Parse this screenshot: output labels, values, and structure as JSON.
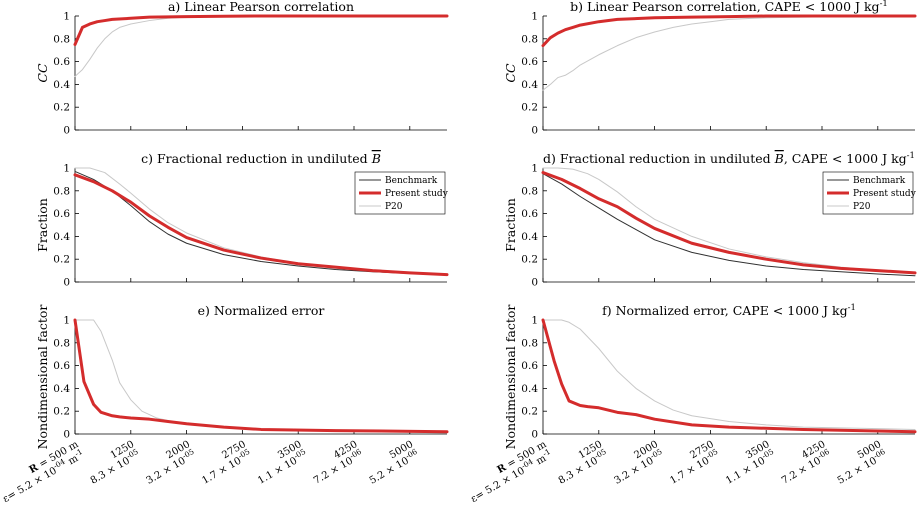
{
  "chart_data": [
    {
      "id": "a",
      "type": "line",
      "title": "a) Linear Pearson correlation",
      "ylabel": "CC",
      "ylabel_italic": true,
      "ylim": [
        0,
        1
      ],
      "yticks": [
        "0",
        "0.2",
        "0.4",
        "0.6",
        "0.8",
        "1"
      ],
      "xlim": [
        500,
        5500
      ],
      "legend": null,
      "series": [
        {
          "name": "P20",
          "color": "#c8c8c8",
          "width": 1,
          "x": [
            500,
            600,
            700,
            800,
            900,
            1000,
            1100,
            1250,
            1500,
            1750,
            2000,
            2500,
            3000,
            4000,
            5500
          ],
          "y": [
            0.47,
            0.53,
            0.62,
            0.72,
            0.8,
            0.86,
            0.9,
            0.93,
            0.96,
            0.98,
            0.99,
            0.995,
            0.998,
            1.0,
            1.0
          ]
        },
        {
          "name": "Present study",
          "color": "#d42c2c",
          "width": 3,
          "x": [
            500,
            600,
            700,
            800,
            900,
            1000,
            1250,
            1500,
            2000,
            2500,
            3000,
            4000,
            5500
          ],
          "y": [
            0.75,
            0.9,
            0.93,
            0.95,
            0.96,
            0.97,
            0.98,
            0.99,
            0.995,
            0.998,
            1.0,
            1.0,
            1.0
          ]
        }
      ]
    },
    {
      "id": "b",
      "type": "line",
      "title": "b) Linear Pearson correlation, CAPE < 1000 J kg",
      "title_sup": "-1",
      "ylabel": "CC",
      "ylabel_italic": true,
      "ylim": [
        0,
        1
      ],
      "yticks": [
        "0",
        "0.2",
        "0.4",
        "0.6",
        "0.8",
        "1"
      ],
      "xlim": [
        500,
        5500
      ],
      "legend": null,
      "series": [
        {
          "name": "P20",
          "color": "#c8c8c8",
          "width": 1,
          "x": [
            500,
            600,
            700,
            800,
            900,
            1000,
            1250,
            1500,
            1750,
            2000,
            2250,
            2500,
            2750,
            3000,
            3500,
            4000,
            4500,
            5500
          ],
          "y": [
            0.35,
            0.4,
            0.46,
            0.48,
            0.52,
            0.57,
            0.66,
            0.74,
            0.81,
            0.86,
            0.9,
            0.93,
            0.95,
            0.97,
            0.985,
            0.99,
            0.995,
            1.0
          ]
        },
        {
          "name": "Present study",
          "color": "#d42c2c",
          "width": 3,
          "x": [
            500,
            600,
            700,
            800,
            900,
            1000,
            1250,
            1500,
            2000,
            2500,
            3000,
            3500,
            4000,
            5500
          ],
          "y": [
            0.74,
            0.81,
            0.85,
            0.88,
            0.9,
            0.92,
            0.95,
            0.97,
            0.985,
            0.99,
            0.995,
            1.0,
            1.0,
            1.0
          ]
        }
      ]
    },
    {
      "id": "c",
      "type": "line",
      "title": "c) Fractional reduction in undiluted",
      "title_symbol": "B",
      "ylabel": "Fraction",
      "ylabel_italic": false,
      "ylim": [
        0,
        1
      ],
      "yticks": [
        "0",
        "0.2",
        "0.4",
        "0.6",
        "0.8",
        "1"
      ],
      "xlim": [
        500,
        5500
      ],
      "legend": [
        "Benchmark",
        "Present study",
        "P20"
      ],
      "series": [
        {
          "name": "P20",
          "color": "#c8c8c8",
          "width": 1,
          "x": [
            500,
            700,
            900,
            1100,
            1250,
            1500,
            1750,
            2000,
            2500,
            3000,
            3500,
            4000,
            4500,
            5000,
            5500
          ],
          "y": [
            1.0,
            1.0,
            0.96,
            0.86,
            0.78,
            0.64,
            0.52,
            0.43,
            0.3,
            0.22,
            0.16,
            0.12,
            0.1,
            0.08,
            0.07
          ]
        },
        {
          "name": "Benchmark",
          "color": "#303030",
          "width": 1,
          "x": [
            500,
            750,
            1000,
            1250,
            1500,
            1750,
            2000,
            2500,
            3000,
            3500,
            4000,
            4500,
            5000,
            5500
          ],
          "y": [
            0.97,
            0.9,
            0.8,
            0.67,
            0.53,
            0.42,
            0.34,
            0.24,
            0.18,
            0.14,
            0.11,
            0.09,
            0.075,
            0.06
          ]
        },
        {
          "name": "Present study",
          "color": "#d42c2c",
          "width": 3,
          "x": [
            500,
            750,
            1000,
            1250,
            1500,
            1750,
            2000,
            2500,
            3000,
            3500,
            4000,
            4500,
            5000,
            5500
          ],
          "y": [
            0.94,
            0.88,
            0.8,
            0.7,
            0.58,
            0.48,
            0.39,
            0.28,
            0.21,
            0.16,
            0.13,
            0.1,
            0.08,
            0.065
          ]
        }
      ]
    },
    {
      "id": "d",
      "type": "line",
      "title": "d) Fractional reduction in undiluted",
      "title_symbol": "B",
      "title_suffix": ", CAPE < 1000 J kg",
      "title_sup": "-1",
      "ylabel": "Fraction",
      "ylabel_italic": false,
      "ylim": [
        0,
        1
      ],
      "yticks": [
        "0",
        "0.2",
        "0.4",
        "0.6",
        "0.8",
        "1"
      ],
      "xlim": [
        500,
        5500
      ],
      "legend": [
        "Benchmark",
        "Present study",
        "P20"
      ],
      "series": [
        {
          "name": "P20",
          "color": "#c8c8c8",
          "width": 1,
          "x": [
            500,
            700,
            900,
            1100,
            1250,
            1500,
            1750,
            2000,
            2500,
            3000,
            3500,
            4000,
            4500,
            5000,
            5500
          ],
          "y": [
            1.0,
            1.0,
            0.99,
            0.95,
            0.9,
            0.79,
            0.66,
            0.55,
            0.4,
            0.29,
            0.22,
            0.17,
            0.13,
            0.1,
            0.08
          ]
        },
        {
          "name": "Benchmark",
          "color": "#303030",
          "width": 1,
          "x": [
            500,
            750,
            1000,
            1250,
            1500,
            1750,
            2000,
            2500,
            3000,
            3500,
            4000,
            4500,
            5000,
            5500
          ],
          "y": [
            0.95,
            0.86,
            0.75,
            0.65,
            0.55,
            0.46,
            0.37,
            0.26,
            0.19,
            0.14,
            0.11,
            0.09,
            0.07,
            0.055
          ]
        },
        {
          "name": "Present study",
          "color": "#d42c2c",
          "width": 3,
          "x": [
            500,
            750,
            1000,
            1250,
            1500,
            1750,
            2000,
            2500,
            3000,
            3500,
            4000,
            4500,
            5000,
            5500
          ],
          "y": [
            0.96,
            0.9,
            0.82,
            0.73,
            0.66,
            0.56,
            0.47,
            0.34,
            0.26,
            0.2,
            0.15,
            0.12,
            0.1,
            0.08
          ]
        }
      ]
    },
    {
      "id": "e",
      "type": "line",
      "title": "e) Normalized error",
      "ylabel": "Nondimensional factor",
      "ylabel_italic": false,
      "ylim": [
        0,
        1
      ],
      "yticks": [
        "0",
        "0.2",
        "0.4",
        "0.6",
        "0.8",
        "1"
      ],
      "xlim": [
        500,
        5500
      ],
      "legend": null,
      "series": [
        {
          "name": "P20",
          "color": "#c8c8c8",
          "width": 1,
          "x": [
            500,
            750,
            850,
            1000,
            1100,
            1250,
            1400,
            1600,
            1800,
            2000,
            2500,
            3000,
            4000,
            5500
          ],
          "y": [
            1.0,
            1.0,
            0.9,
            0.65,
            0.45,
            0.3,
            0.2,
            0.14,
            0.11,
            0.09,
            0.06,
            0.04,
            0.03,
            0.02
          ]
        },
        {
          "name": "Present study",
          "color": "#d42c2c",
          "width": 3,
          "x": [
            500,
            620,
            750,
            850,
            1000,
            1100,
            1250,
            1500,
            1750,
            2000,
            2500,
            3000,
            4000,
            5500
          ],
          "y": [
            1.0,
            0.46,
            0.26,
            0.19,
            0.16,
            0.15,
            0.14,
            0.13,
            0.11,
            0.09,
            0.06,
            0.04,
            0.03,
            0.02
          ]
        }
      ]
    },
    {
      "id": "f",
      "type": "line",
      "title": "f) Normalized error, CAPE < 1000 J kg",
      "title_sup": "-1",
      "ylabel": "Nondimensional factor",
      "ylabel_italic": false,
      "ylim": [
        0,
        1
      ],
      "yticks": [
        "0",
        "0.2",
        "0.4",
        "0.6",
        "0.8",
        "1"
      ],
      "xlim": [
        500,
        5500
      ],
      "legend": null,
      "series": [
        {
          "name": "P20",
          "color": "#c8c8c8",
          "width": 1,
          "x": [
            500,
            750,
            850,
            1000,
            1250,
            1500,
            1750,
            2000,
            2250,
            2500,
            3000,
            3500,
            4000,
            5500
          ],
          "y": [
            1.0,
            1.0,
            0.98,
            0.92,
            0.75,
            0.55,
            0.4,
            0.29,
            0.21,
            0.16,
            0.11,
            0.08,
            0.06,
            0.04
          ]
        },
        {
          "name": "Present study",
          "color": "#d42c2c",
          "width": 3,
          "x": [
            500,
            650,
            750,
            850,
            1000,
            1100,
            1250,
            1500,
            1750,
            2000,
            2500,
            3000,
            4000,
            5500
          ],
          "y": [
            1.0,
            0.64,
            0.44,
            0.29,
            0.25,
            0.24,
            0.23,
            0.19,
            0.17,
            0.13,
            0.08,
            0.06,
            0.04,
            0.02
          ]
        }
      ]
    }
  ],
  "x_axis": {
    "ticks": [
      {
        "x": 500,
        "line1_bold": "R",
        "line1": " = 500 m",
        "line2": "ε= 5.2 × 10",
        "line2_sup": "-04",
        "line2_suffix": " m",
        "line2_suffix_sup": "-1"
      },
      {
        "x": 1250,
        "line1": "1250",
        "line2": "8.3 × 10",
        "line2_sup": "-05"
      },
      {
        "x": 2000,
        "line1": "2000",
        "line2": "3.2 × 10",
        "line2_sup": "-05"
      },
      {
        "x": 2750,
        "line1": "2750",
        "line2": "1.7 × 10",
        "line2_sup": "-05"
      },
      {
        "x": 3500,
        "line1": "3500",
        "line2": "1.1 × 10",
        "line2_sup": "-05"
      },
      {
        "x": 4250,
        "line1": "4250",
        "line2": "7.2 × 10",
        "line2_sup": "-06"
      },
      {
        "x": 5000,
        "line1": "5000",
        "line2": "5.2 × 10",
        "line2_sup": "-06"
      }
    ]
  }
}
